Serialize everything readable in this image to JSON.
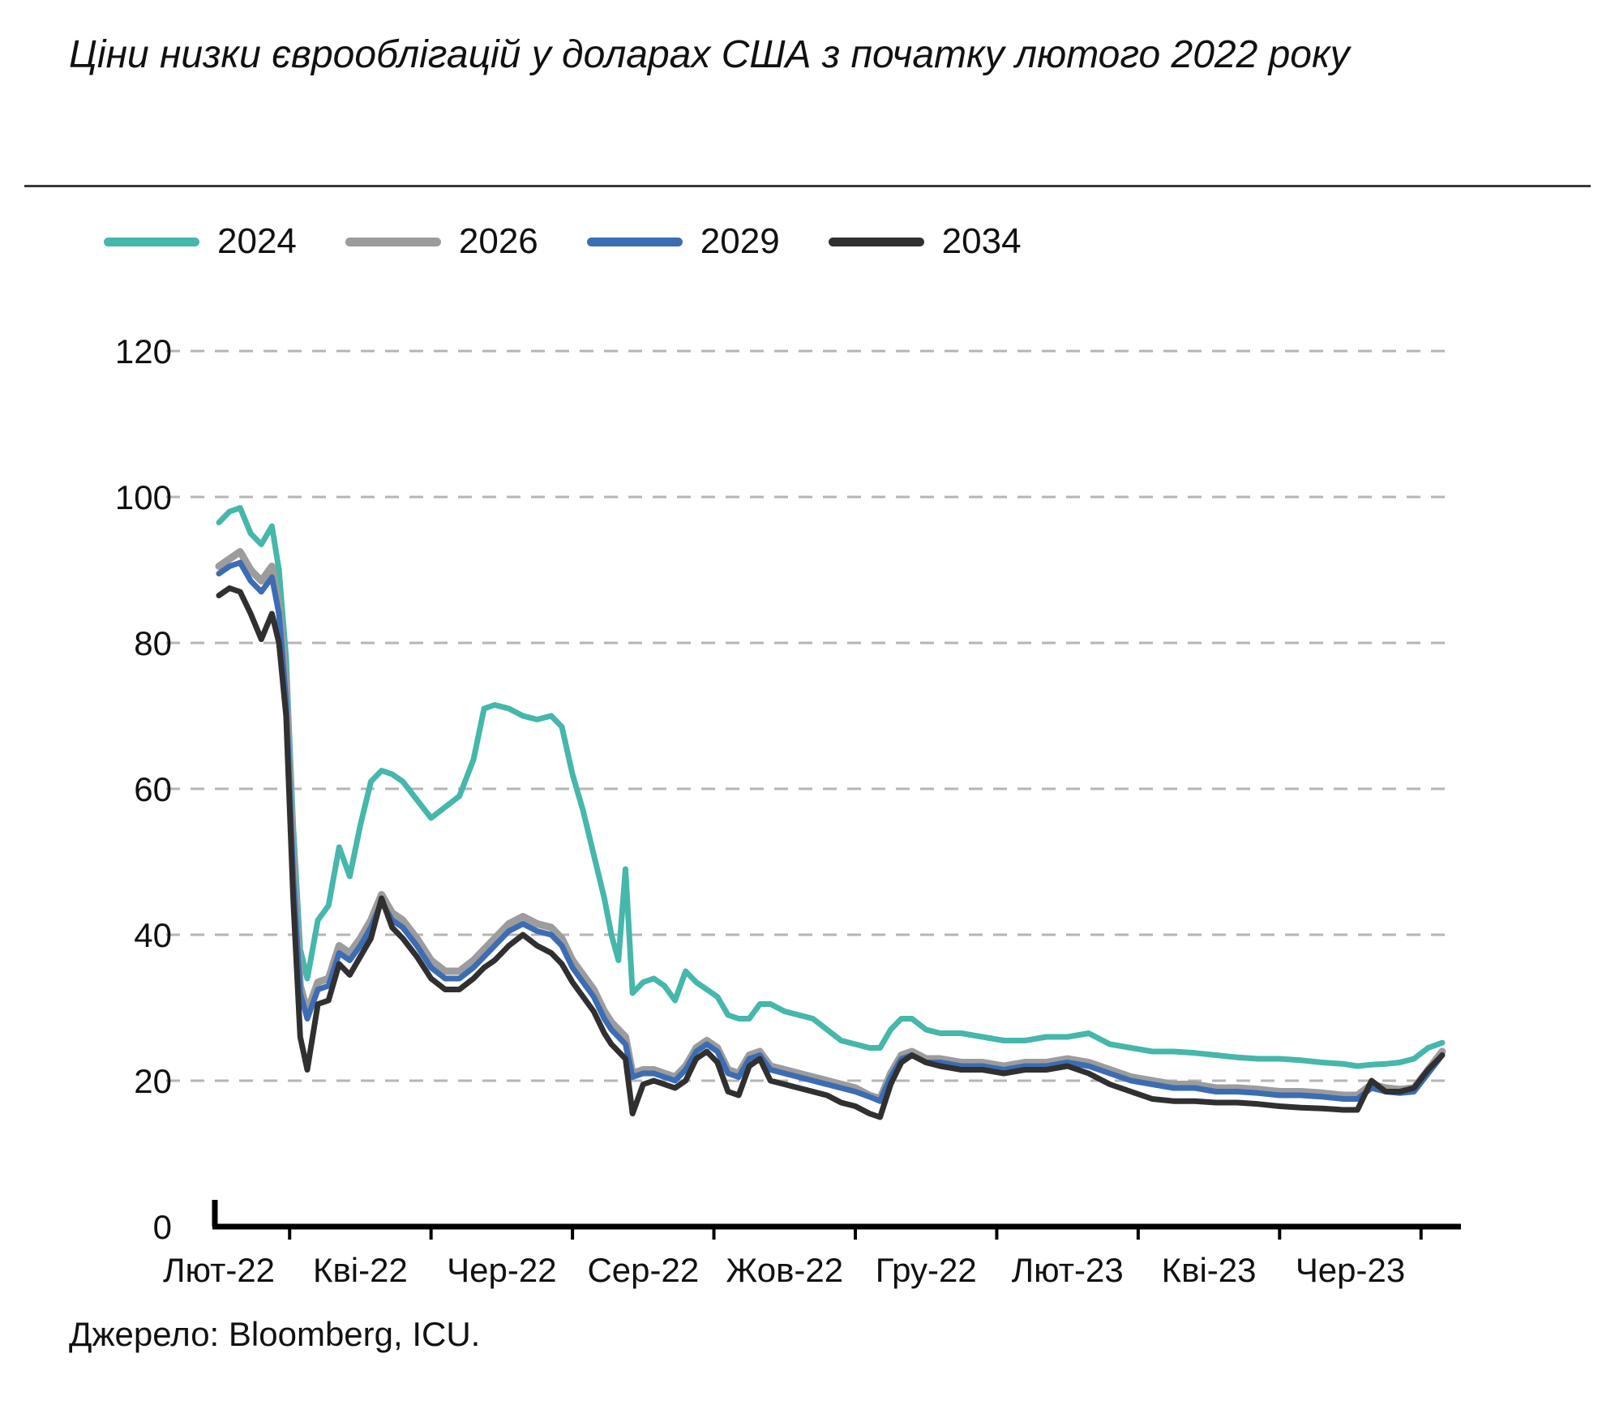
{
  "title": "Ціни низки єврооблігацій у доларах США з початку лютого 2022 року",
  "source": "Джерело: Bloomberg, ICU.",
  "legend": {
    "items": [
      "2024",
      "2026",
      "2029",
      "2034"
    ]
  },
  "chart_data": {
    "type": "line",
    "title": "Ціни низки єврооблігацій у доларах США з початку лютого 2022 року",
    "xlabel": "",
    "ylabel": "",
    "ylim": [
      0,
      120
    ],
    "x_range": [
      0,
      17.45
    ],
    "grid": true,
    "legend_position": "top",
    "y_ticks": [
      0,
      20,
      40,
      60,
      80,
      100,
      120
    ],
    "x_tick_months": [
      0,
      2,
      4,
      6,
      8,
      10,
      12,
      14,
      16
    ],
    "x_tick_labels": [
      "Лют-22",
      "Кві-22",
      "Чер-22",
      "Сер-22",
      "Жов-22",
      "Гру-22",
      "Лют-23",
      "Кві-23",
      "Чер-23"
    ],
    "x": [
      0,
      0.15,
      0.3,
      0.45,
      0.6,
      0.75,
      0.85,
      0.95,
      1.05,
      1.15,
      1.25,
      1.4,
      1.55,
      1.7,
      1.85,
      2.0,
      2.15,
      2.3,
      2.45,
      2.6,
      2.8,
      3.0,
      3.2,
      3.4,
      3.6,
      3.75,
      3.9,
      4.1,
      4.3,
      4.5,
      4.7,
      4.85,
      5.0,
      5.15,
      5.3,
      5.45,
      5.55,
      5.65,
      5.75,
      5.85,
      6.0,
      6.15,
      6.3,
      6.45,
      6.6,
      6.75,
      6.9,
      7.05,
      7.2,
      7.35,
      7.5,
      7.65,
      7.8,
      8.0,
      8.2,
      8.4,
      8.6,
      8.8,
      9.0,
      9.2,
      9.35,
      9.5,
      9.65,
      9.8,
      10.0,
      10.2,
      10.5,
      10.8,
      11.1,
      11.4,
      11.7,
      12.0,
      12.3,
      12.6,
      12.9,
      13.2,
      13.5,
      13.8,
      14.1,
      14.4,
      14.7,
      15.0,
      15.3,
      15.6,
      15.9,
      16.1,
      16.3,
      16.5,
      16.7,
      16.9,
      17.1,
      17.3
    ],
    "series": [
      {
        "name": "2024",
        "color": "#45b7ab",
        "width": 7,
        "values": [
          96.5,
          98,
          98.5,
          95,
          93.5,
          96,
          90,
          78,
          55,
          38,
          34,
          42,
          44,
          52,
          48,
          55,
          61,
          62.5,
          62,
          61,
          58.5,
          56,
          57.5,
          59,
          64,
          71,
          71.5,
          71,
          70,
          69.5,
          70,
          68.5,
          62,
          57,
          51,
          45,
          40,
          36.5,
          49,
          32,
          33.5,
          34,
          33,
          31,
          35,
          33.5,
          32.5,
          31.5,
          29,
          28.5,
          28.5,
          30.5,
          30.5,
          29.5,
          29,
          28.5,
          27,
          25.5,
          25,
          24.5,
          24.5,
          27,
          28.5,
          28.5,
          27,
          26.5,
          26.5,
          26,
          25.5,
          25.5,
          26,
          26,
          26.5,
          25,
          24.5,
          24,
          24,
          23.8,
          23.5,
          23.2,
          23,
          23,
          22.8,
          22.5,
          22.3,
          22,
          22.2,
          22.3,
          22.5,
          23,
          24.5,
          25.2
        ]
      },
      {
        "name": "2026",
        "color": "#9c9c9c",
        "width": 9,
        "values": [
          90.5,
          91.5,
          92.5,
          90,
          88.5,
          90.5,
          85,
          74,
          50,
          33,
          29.5,
          33.5,
          34,
          38.5,
          37.5,
          39.5,
          42,
          45.5,
          43,
          42,
          39.5,
          36.5,
          35,
          35,
          36.5,
          38,
          39.5,
          41.5,
          42.5,
          41.5,
          41,
          39.5,
          36.5,
          34.5,
          32.5,
          29.5,
          28,
          27,
          26,
          21,
          21.5,
          21.5,
          21,
          20.5,
          22,
          24.5,
          25.5,
          24.5,
          21.5,
          21,
          23.5,
          24,
          22,
          21.5,
          21,
          20.5,
          20,
          19.5,
          19,
          18,
          17.5,
          21,
          23.5,
          24,
          23,
          23,
          22.5,
          22.5,
          22,
          22.5,
          22.5,
          23,
          22.5,
          21.5,
          20.5,
          20,
          19.5,
          19.5,
          19,
          19,
          18.8,
          18.5,
          18.5,
          18.3,
          18,
          18,
          19.5,
          19,
          18.8,
          19,
          21.5,
          24
        ]
      },
      {
        "name": "2029",
        "color": "#3c6cb4",
        "width": 7,
        "values": [
          89.5,
          90.5,
          91,
          88.5,
          87,
          89,
          84,
          72,
          48,
          32,
          28.5,
          32.5,
          33,
          37.5,
          36.5,
          38.5,
          41,
          44.5,
          42,
          41,
          38.5,
          35.5,
          34,
          34,
          35.5,
          37,
          38.5,
          40.5,
          41.5,
          40.5,
          40,
          38.5,
          35.5,
          33.5,
          31.5,
          28.5,
          27,
          26,
          25,
          20.5,
          21,
          21,
          20.5,
          20,
          21.5,
          24,
          25,
          24,
          21,
          20.5,
          23,
          23.5,
          21.5,
          21,
          20.5,
          20,
          19.5,
          19,
          18.5,
          17.8,
          17.2,
          20.5,
          23,
          23.5,
          22.5,
          22.5,
          22,
          22,
          21.5,
          22,
          22,
          22.5,
          22,
          21,
          20,
          19.5,
          19,
          19,
          18.5,
          18.5,
          18.3,
          18,
          18,
          17.8,
          17.5,
          17.5,
          19,
          18.5,
          18.3,
          18.5,
          21,
          23.5
        ]
      },
      {
        "name": "2034",
        "color": "#303030",
        "width": 7,
        "values": [
          86.5,
          87.5,
          87,
          84,
          80.5,
          84,
          80,
          70,
          45,
          26,
          21.5,
          30.5,
          31,
          36,
          34.5,
          37,
          39.5,
          45,
          41,
          39.5,
          37,
          34,
          32.5,
          32.5,
          34,
          35.5,
          36.5,
          38.5,
          40,
          38.5,
          37.5,
          36,
          33.5,
          31.5,
          29.5,
          26.5,
          25,
          24,
          23,
          15.5,
          19.5,
          20,
          19.5,
          19,
          20,
          23,
          24,
          22.5,
          18.5,
          18,
          22,
          23,
          20,
          19.5,
          19,
          18.5,
          18,
          17,
          16.5,
          15.5,
          15,
          19.5,
          22.5,
          23.5,
          22.5,
          22,
          21.5,
          21.5,
          21,
          21.5,
          21.5,
          22,
          21,
          19.5,
          18.5,
          17.5,
          17.2,
          17.2,
          17,
          17,
          16.8,
          16.5,
          16.3,
          16.2,
          16,
          16,
          20,
          18.5,
          18.5,
          19,
          21.5,
          23.5
        ]
      }
    ],
    "style": {
      "grid_color": "#b5b5b5",
      "axis_color": "#000000",
      "text_color": "#111111"
    }
  }
}
